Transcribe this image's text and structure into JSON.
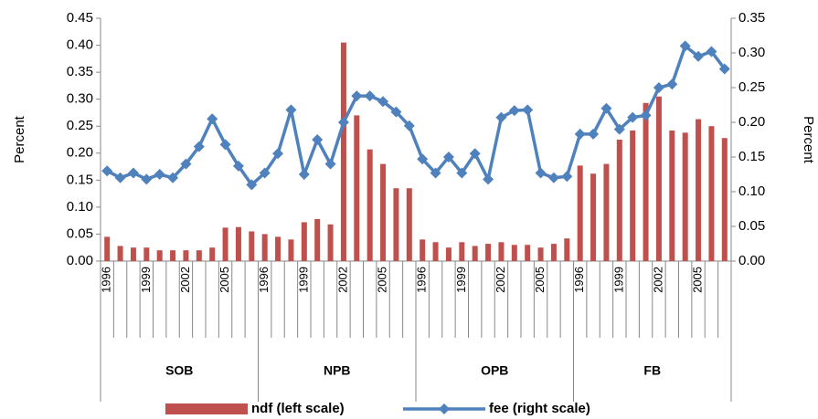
{
  "chart_data": {
    "type": "bar_line",
    "ylabel": "Percent",
    "y2label": "Percent",
    "categories": [
      "1996",
      null,
      null,
      "1999",
      null,
      null,
      "2002",
      null,
      null,
      "2005",
      null,
      null,
      "1996",
      null,
      null,
      "1999",
      null,
      null,
      "2002",
      null,
      null,
      "2005",
      null,
      null,
      "1996",
      null,
      null,
      "1999",
      null,
      null,
      "2002",
      null,
      null,
      "2005",
      null,
      null,
      "1996",
      null,
      null,
      "1999",
      null,
      null,
      "2002",
      null,
      null,
      "2005",
      null,
      null
    ],
    "groups": [
      "SOB",
      "NPB",
      "OPB",
      "FB"
    ],
    "series": [
      {
        "name": "ndf (left scale)",
        "type": "bar",
        "color": "#c0504d",
        "values": [
          0.045,
          0.028,
          0.025,
          0.025,
          0.02,
          0.02,
          0.02,
          0.02,
          0.025,
          0.062,
          0.063,
          0.055,
          0.05,
          0.045,
          0.04,
          0.072,
          0.078,
          0.068,
          0.405,
          0.27,
          0.207,
          0.18,
          0.135,
          0.135,
          0.04,
          0.035,
          0.025,
          0.035,
          0.028,
          0.032,
          0.035,
          0.03,
          0.03,
          0.025,
          0.032,
          0.042,
          0.177,
          0.162,
          0.18,
          0.225,
          0.242,
          0.293,
          0.305,
          0.242,
          0.238,
          0.263,
          0.25,
          0.228
        ]
      },
      {
        "name": "fee (right scale)",
        "type": "line",
        "axis": "y2",
        "color": "#4f81bd",
        "values": [
          0.13,
          0.12,
          0.127,
          0.118,
          0.125,
          0.12,
          0.14,
          0.165,
          0.205,
          0.168,
          0.137,
          0.11,
          0.127,
          0.155,
          0.218,
          0.125,
          0.175,
          0.14,
          0.2,
          0.238,
          0.238,
          0.23,
          0.215,
          0.195,
          0.147,
          0.127,
          0.15,
          0.127,
          0.155,
          0.118,
          0.207,
          0.217,
          0.218,
          0.127,
          0.12,
          0.122,
          0.183,
          0.183,
          0.22,
          0.19,
          0.207,
          0.21,
          0.25,
          0.255,
          0.31,
          0.295,
          0.302,
          0.277
        ]
      }
    ],
    "ylim": [
      0,
      0.45
    ],
    "yticks": [
      {
        "value": 0,
        "label": "0.00"
      },
      {
        "value": 0.05,
        "label": "0.05"
      },
      {
        "value": 0.1,
        "label": "0.10"
      },
      {
        "value": 0.15,
        "label": "0.15"
      },
      {
        "value": 0.2,
        "label": "0.20"
      },
      {
        "value": 0.25,
        "label": "0.25"
      },
      {
        "value": 0.3,
        "label": "0.30"
      },
      {
        "value": 0.35,
        "label": "0.35"
      },
      {
        "value": 0.4,
        "label": "0.40"
      },
      {
        "value": 0.45,
        "label": "0.45"
      }
    ],
    "y2lim": [
      0,
      0.35
    ],
    "y2ticks": [
      {
        "value": 0,
        "label": "0.00"
      },
      {
        "value": 0.05,
        "label": "0.05"
      },
      {
        "value": 0.1,
        "label": "0.10"
      },
      {
        "value": 0.15,
        "label": "0.15"
      },
      {
        "value": 0.2,
        "label": "0.20"
      },
      {
        "value": 0.25,
        "label": "0.25"
      },
      {
        "value": 0.3,
        "label": "0.30"
      },
      {
        "value": 0.35,
        "label": "0.35"
      }
    ],
    "legend": "bottom"
  }
}
